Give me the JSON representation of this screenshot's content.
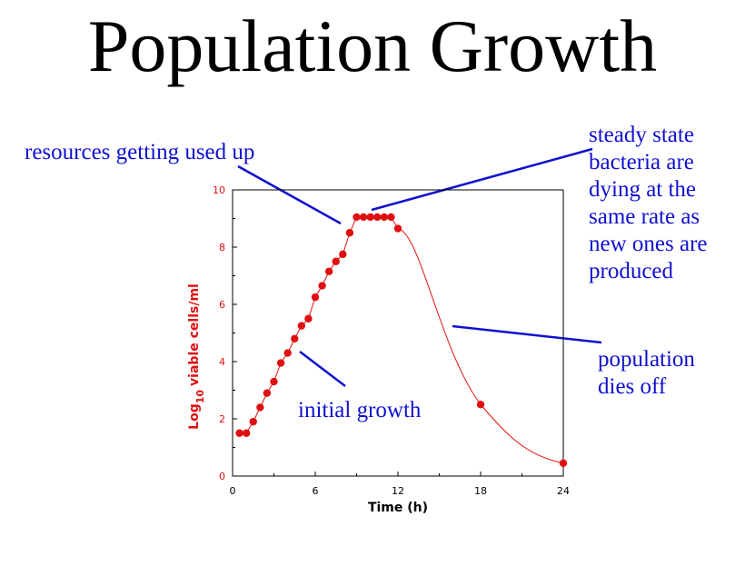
{
  "title": "Population Growth",
  "annotations": {
    "resources": "resources getting used up",
    "steady": "steady state\nbacteria are\ndying at the\nsame rate as\nnew ones are\nproduced",
    "dies": "population\ndies off",
    "initial": "initial growth"
  },
  "colors": {
    "title": "#000000",
    "annotation": "#1010d0",
    "series": "#e01010",
    "axis_text": "#e01010",
    "x_axis_text": "#000000"
  },
  "chart_data": {
    "type": "line",
    "xlabel": "Time (h)",
    "ylabel_main": "Log",
    "ylabel_sub": "10",
    "ylabel_rest": "viable cells/ml",
    "xlim": [
      0,
      24
    ],
    "ylim": [
      0,
      10
    ],
    "xticks": [
      0,
      6,
      12,
      18,
      24
    ],
    "yticks": [
      0,
      2,
      4,
      6,
      8,
      10
    ],
    "grid": false,
    "series": [
      {
        "x": [
          0.5,
          1.0,
          1.5,
          2.0,
          2.5,
          3.0,
          3.5,
          4.0,
          4.5,
          5.0,
          5.5,
          6.0,
          6.5,
          7.0,
          7.5,
          8.0,
          8.5,
          9.0,
          9.5,
          10.0,
          10.5,
          11.0,
          11.5,
          12.0,
          18.0,
          24.0
        ],
        "y": [
          1.5,
          1.5,
          1.9,
          2.4,
          2.9,
          3.3,
          3.95,
          4.3,
          4.8,
          5.25,
          5.5,
          6.25,
          6.65,
          7.15,
          7.5,
          7.75,
          8.5,
          9.05,
          9.05,
          9.05,
          9.05,
          9.05,
          9.05,
          8.65,
          2.5,
          0.45
        ]
      }
    ]
  }
}
